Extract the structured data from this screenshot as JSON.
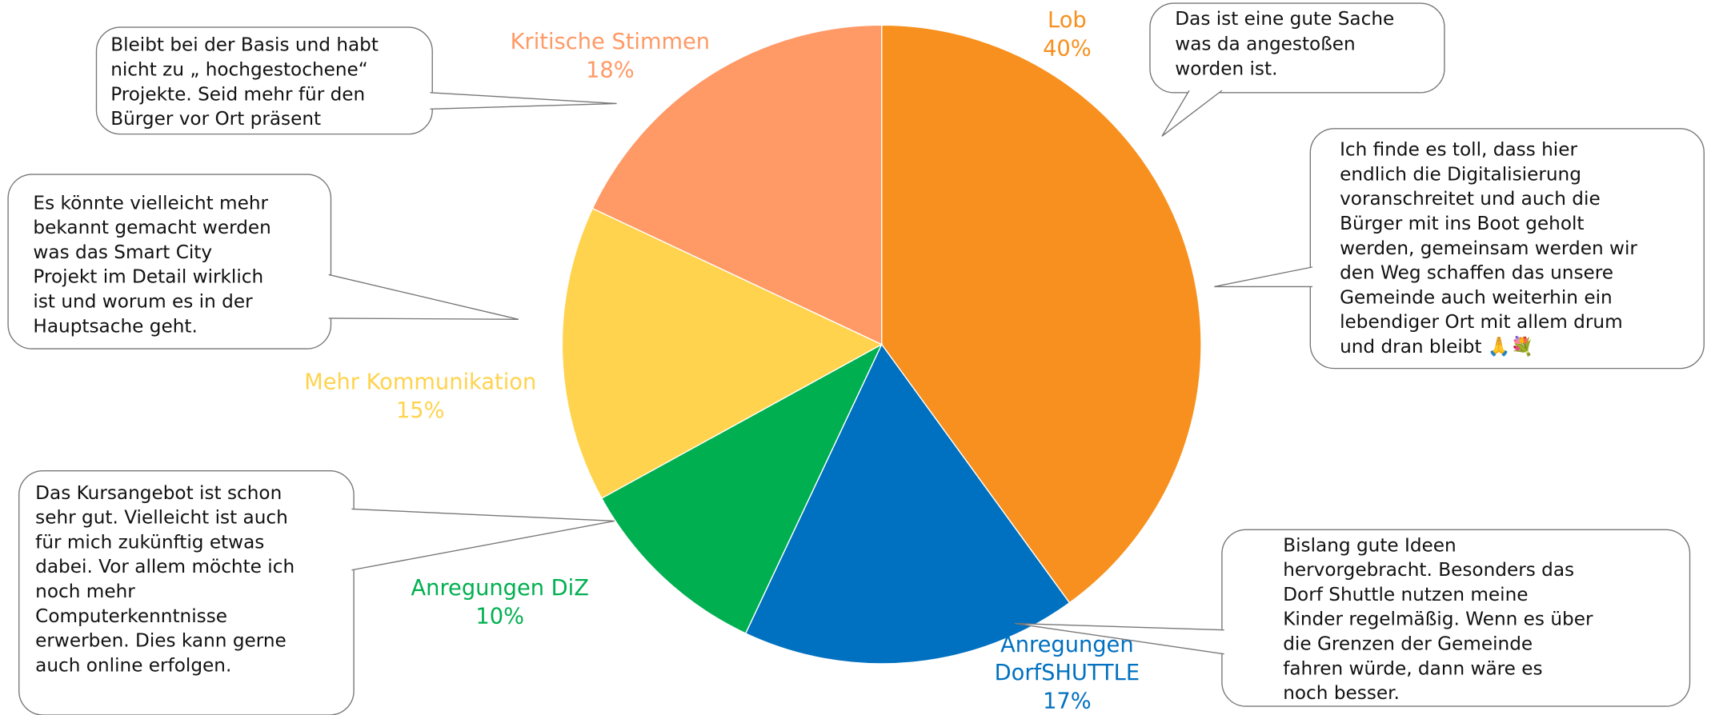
{
  "chart_data": {
    "type": "pie",
    "categories": [
      "Lob",
      "Anregungen DorfSHUTTLE",
      "Anregungen DiZ",
      "Mehr Kommunikation",
      "Kritische Stimmen"
    ],
    "values": [
      40,
      17,
      10,
      15,
      18
    ],
    "value_labels": [
      "40%",
      "17%",
      "10%",
      "15%",
      "18%"
    ],
    "colors": [
      "#f7901e",
      "#0070c0",
      "#00b050",
      "#ffd34d",
      "#ff9966"
    ],
    "annotations": [
      {
        "lines": [
          "Bleibt bei der Basis und habt",
          "nicht zu „ hochgestochene“",
          "Projekte. Seid mehr für den",
          "Bürger vor Ort präsent"
        ]
      },
      {
        "lines": [
          "Es könnte vielleicht mehr",
          "bekannt gemacht werden",
          "was das Smart City",
          "Projekt im Detail wirklich",
          "ist und worum es in der",
          "Hauptsache geht."
        ]
      },
      {
        "lines": [
          "Das Kursangebot ist schon",
          "sehr gut. Vielleicht ist auch",
          "für mich zukünftig etwas",
          "dabei. Vor allem möchte ich",
          "noch mehr",
          "Computerkenntnisse",
          "erwerben. Dies kann gerne",
          "auch online erfolgen."
        ]
      },
      {
        "lines": [
          "Das ist eine gute Sache",
          "was da angestoßen",
          "worden ist."
        ]
      },
      {
        "lines": [
          "Ich finde es toll, dass hier",
          "endlich die Digitalisierung",
          "voranschreitet und auch die",
          "Bürger mit ins Boot geholt",
          "werden, gemeinsam werden wir",
          "den Weg schaffen das unsere",
          "Gemeinde auch weiterhin ein",
          "lebendiger Ort mit allem drum",
          "und dran bleibt 🙏💐"
        ]
      },
      {
        "lines": [
          "Bislang gute Ideen",
          "hervorgebracht. Besonders das",
          "Dorf Shuttle nutzen meine",
          "Kinder regelmäßig. Wenn es über",
          "die Grenzen der Gemeinde",
          "fahren würde, dann wäre es",
          "noch besser."
        ]
      }
    ]
  }
}
